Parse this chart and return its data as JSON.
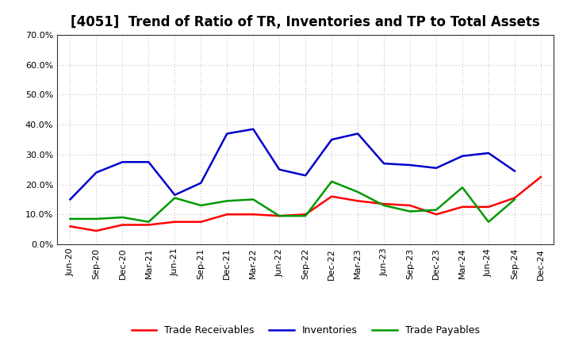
{
  "title": "[4051]  Trend of Ratio of TR, Inventories and TP to Total Assets",
  "x_labels": [
    "Jun-20",
    "Sep-20",
    "Dec-20",
    "Mar-21",
    "Jun-21",
    "Sep-21",
    "Dec-21",
    "Mar-22",
    "Jun-22",
    "Sep-22",
    "Dec-22",
    "Mar-23",
    "Jun-23",
    "Sep-23",
    "Dec-23",
    "Mar-24",
    "Jun-24",
    "Sep-24",
    "Dec-24"
  ],
  "trade_receivables": [
    0.06,
    0.045,
    0.065,
    0.065,
    0.075,
    0.075,
    0.1,
    0.1,
    0.095,
    0.1,
    0.16,
    0.145,
    0.135,
    0.13,
    0.1,
    0.125,
    0.125,
    0.155,
    0.225
  ],
  "inventories": [
    0.15,
    0.24,
    0.275,
    0.275,
    0.165,
    0.205,
    0.37,
    0.385,
    0.25,
    0.23,
    0.35,
    0.37,
    0.27,
    0.265,
    0.255,
    0.295,
    0.305,
    0.245,
    null
  ],
  "trade_payables": [
    0.085,
    0.085,
    0.09,
    0.075,
    0.155,
    0.13,
    0.145,
    0.15,
    0.095,
    0.095,
    0.21,
    0.175,
    0.13,
    0.11,
    0.115,
    0.19,
    0.075,
    0.15,
    null
  ],
  "ylim": [
    0.0,
    0.7
  ],
  "yticks": [
    0.0,
    0.1,
    0.2,
    0.3,
    0.4,
    0.5,
    0.6,
    0.7
  ],
  "colors": {
    "trade_receivables": "#ff0000",
    "inventories": "#0000cc",
    "trade_payables": "#009900"
  },
  "legend_labels": [
    "Trade Receivables",
    "Inventories",
    "Trade Payables"
  ],
  "background_color": "#ffffff",
  "grid_color": "#999999",
  "title_fontsize": 12,
  "axis_fontsize": 8,
  "legend_fontsize": 9,
  "linewidth": 1.8
}
